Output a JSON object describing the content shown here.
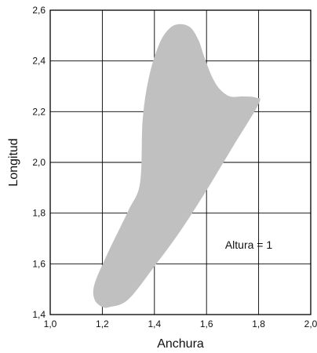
{
  "chart_data": {
    "type": "area",
    "title": "",
    "xlabel": "Anchura",
    "ylabel": "Longitud",
    "xlim": [
      1.0,
      2.0
    ],
    "ylim": [
      1.4,
      2.6
    ],
    "x_ticks": [
      1.0,
      1.2,
      1.4,
      1.6,
      1.8,
      2.0
    ],
    "y_ticks": [
      1.4,
      1.6,
      1.8,
      2.0,
      2.2,
      2.4,
      2.6
    ],
    "x_tick_labels": [
      "1,0",
      "1,2",
      "1,4",
      "1,6",
      "1,8",
      "2,0"
    ],
    "y_tick_labels": [
      "1,4",
      "1,6",
      "1,8",
      "2,0",
      "2,2",
      "2,4",
      "2,6"
    ],
    "grid": true,
    "annotation": "Altura = 1",
    "region_color": "#c0c0c0",
    "region_boundary": [
      {
        "x": 1.23,
        "y": 1.43
      },
      {
        "x": 1.3,
        "y": 1.46
      },
      {
        "x": 1.4,
        "y": 1.59
      },
      {
        "x": 1.5,
        "y": 1.73
      },
      {
        "x": 1.6,
        "y": 1.89
      },
      {
        "x": 1.7,
        "y": 2.06
      },
      {
        "x": 1.8,
        "y": 2.23
      },
      {
        "x": 1.79,
        "y": 2.255
      },
      {
        "x": 1.74,
        "y": 2.26
      },
      {
        "x": 1.69,
        "y": 2.26
      },
      {
        "x": 1.65,
        "y": 2.29
      },
      {
        "x": 1.62,
        "y": 2.34
      },
      {
        "x": 1.59,
        "y": 2.42
      },
      {
        "x": 1.57,
        "y": 2.48
      },
      {
        "x": 1.54,
        "y": 2.53
      },
      {
        "x": 1.5,
        "y": 2.545
      },
      {
        "x": 1.46,
        "y": 2.53
      },
      {
        "x": 1.42,
        "y": 2.47
      },
      {
        "x": 1.38,
        "y": 2.34
      },
      {
        "x": 1.355,
        "y": 2.17
      },
      {
        "x": 1.345,
        "y": 1.92
      },
      {
        "x": 1.3,
        "y": 1.81
      },
      {
        "x": 1.22,
        "y": 1.64
      },
      {
        "x": 1.17,
        "y": 1.52
      },
      {
        "x": 1.17,
        "y": 1.46
      },
      {
        "x": 1.2,
        "y": 1.43
      }
    ]
  }
}
